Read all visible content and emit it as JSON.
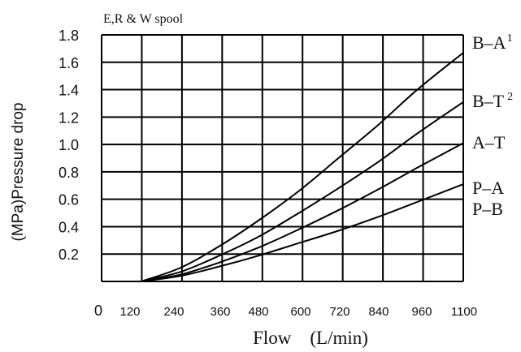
{
  "chart_data": {
    "type": "line",
    "title": "E,R & W spool",
    "xlabel": "Flow　(L/min)",
    "ylabel": "(MPa)Pressure drop",
    "xlim": [
      0,
      1100
    ],
    "ylim": [
      0,
      1.8
    ],
    "x_tick_labels": [
      "0",
      "120",
      "240",
      "360",
      "480",
      "600",
      "720",
      "840",
      "960",
      "1100"
    ],
    "y_tick_labels": [
      "0.2",
      "0.4",
      "0.6",
      "0.8",
      "1.0",
      "1.2",
      "1.4",
      "1.6",
      "1.8"
    ],
    "grid": true,
    "series": [
      {
        "name": "B–A",
        "superscript": "1",
        "points": [
          [
            120,
            0
          ],
          [
            240,
            0.1
          ],
          [
            360,
            0.26
          ],
          [
            480,
            0.45
          ],
          [
            600,
            0.66
          ],
          [
            720,
            0.9
          ],
          [
            840,
            1.14
          ],
          [
            960,
            1.4
          ],
          [
            1100,
            1.67
          ]
        ]
      },
      {
        "name": "B–T",
        "superscript": "2",
        "points": [
          [
            120,
            0
          ],
          [
            240,
            0.07
          ],
          [
            360,
            0.19
          ],
          [
            480,
            0.33
          ],
          [
            600,
            0.5
          ],
          [
            720,
            0.68
          ],
          [
            840,
            0.87
          ],
          [
            960,
            1.08
          ],
          [
            1100,
            1.31
          ]
        ]
      },
      {
        "name": "A–T",
        "superscript": "",
        "points": [
          [
            120,
            0
          ],
          [
            240,
            0.05
          ],
          [
            360,
            0.14
          ],
          [
            480,
            0.25
          ],
          [
            600,
            0.38
          ],
          [
            720,
            0.52
          ],
          [
            840,
            0.67
          ],
          [
            960,
            0.83
          ],
          [
            1100,
            1.01
          ]
        ]
      },
      {
        "name": "P–A",
        "superscript": "",
        "points": [
          [
            120,
            0
          ],
          [
            240,
            0.04
          ],
          [
            360,
            0.11
          ],
          [
            480,
            0.19
          ],
          [
            600,
            0.28
          ],
          [
            720,
            0.37
          ],
          [
            840,
            0.47
          ],
          [
            960,
            0.58
          ],
          [
            1100,
            0.71
          ]
        ]
      }
    ],
    "extra_legend_labels": [
      "P–B"
    ]
  }
}
